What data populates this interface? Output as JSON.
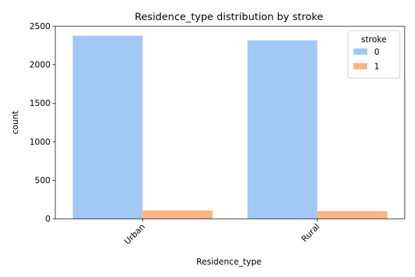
{
  "chart_data": {
    "type": "bar",
    "title": "Residence_type distribution by stroke",
    "xlabel": "Residence_type",
    "ylabel": "count",
    "categories": [
      "Urban",
      "Rural"
    ],
    "series": [
      {
        "name": "0",
        "values": [
          2378,
          2318
        ],
        "color": "#a1c9f4"
      },
      {
        "name": "1",
        "values": [
          109,
          100
        ],
        "color": "#ffb482"
      }
    ],
    "ylim": [
      0,
      2500
    ],
    "yticks": [
      0,
      500,
      1000,
      1500,
      2000,
      2500
    ],
    "grid": false,
    "legend": {
      "title": "stroke",
      "placement": "top-right"
    },
    "xtick_rotation": 45
  }
}
